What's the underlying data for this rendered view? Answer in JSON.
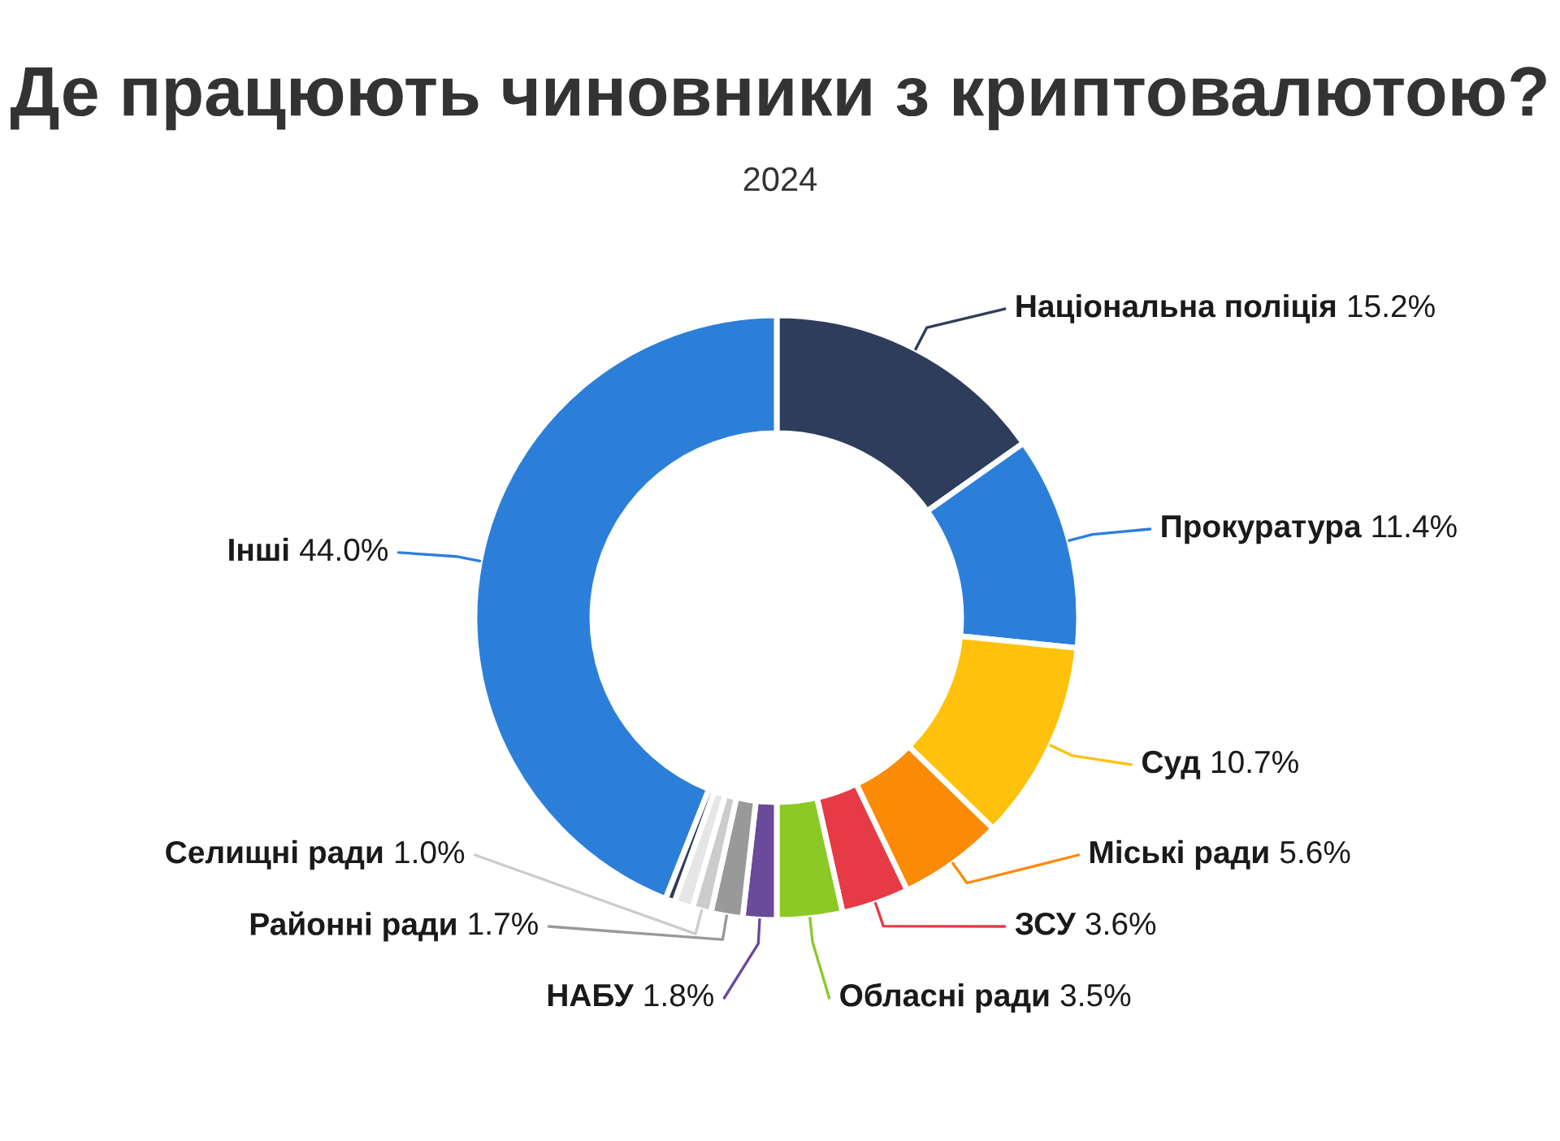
{
  "chart_data": {
    "type": "donut",
    "title": "Де працюють чиновники з криптовалютою?",
    "subtitle": "2024",
    "categories": [
      "Національна поліція",
      "Прокуратура",
      "Суд",
      "Міські ради",
      "ЗСУ",
      "Обласні ради",
      "НАБУ",
      "Районні ради",
      "Селищні ради",
      null,
      null,
      "Інші"
    ],
    "values": [
      15.2,
      11.4,
      10.7,
      5.6,
      3.6,
      3.5,
      1.8,
      1.7,
      1.0,
      1.0,
      0.5,
      44.0
    ],
    "value_labels": [
      "15.2%",
      "11.4%",
      "10.7%",
      "5.6%",
      "3.6%",
      "3.5%",
      "1.8%",
      "1.7%",
      "1.0%",
      null,
      null,
      "44.0%"
    ],
    "colors": [
      "#2e3d5c",
      "#2c7fd8",
      "#fec20c",
      "#fb8a06",
      "#e63a46",
      "#8bc926",
      "#6a4a9a",
      "#999999",
      "#cccccc",
      "#e6e6e6",
      "#2e3d5c",
      "#2c7fd8"
    ]
  }
}
